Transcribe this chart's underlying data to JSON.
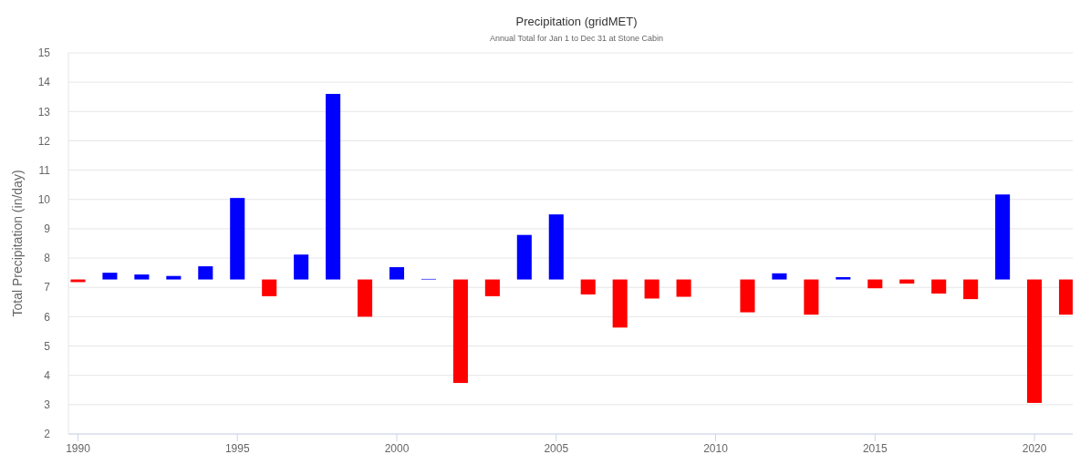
{
  "chart_data": {
    "type": "bar",
    "title": "Precipitation (gridMET)",
    "subtitle": "Annual Total for Jan 1 to Dec 31 at Stone Cabin",
    "ylabel": "Total Precipitation (in/day)",
    "x": [
      1990,
      1991,
      1992,
      1993,
      1994,
      1995,
      1996,
      1997,
      1998,
      1999,
      2000,
      2001,
      2002,
      2003,
      2004,
      2005,
      2006,
      2007,
      2008,
      2009,
      2011,
      2012,
      2013,
      2014,
      2015,
      2016,
      2017,
      2018,
      2019,
      2020,
      2021
    ],
    "base": [
      7.27,
      7.27,
      7.27,
      7.27,
      7.27,
      7.27,
      7.27,
      7.27,
      7.27,
      7.27,
      7.27,
      7.27,
      7.27,
      7.27,
      7.27,
      7.27,
      7.27,
      7.27,
      7.27,
      7.27,
      7.27,
      7.27,
      7.27,
      7.27,
      7.27,
      7.27,
      7.27,
      7.27,
      7.27,
      7.27,
      7.27
    ],
    "values": [
      -0.09,
      0.23,
      0.17,
      0.12,
      0.45,
      2.78,
      -0.57,
      0.85,
      6.33,
      -1.27,
      0.42,
      0.02,
      -3.53,
      -0.57,
      1.52,
      2.22,
      -0.51,
      -1.64,
      -0.65,
      -0.59,
      -1.12,
      0.21,
      -1.2,
      0.08,
      -0.3,
      -0.14,
      -0.48,
      -0.67,
      2.9,
      -4.21,
      -1.2
    ],
    "colors": [
      "#ff0000",
      "#0000ff",
      "#0000ff",
      "#0000ff",
      "#0000ff",
      "#0000ff",
      "#ff0000",
      "#0000ff",
      "#0000ff",
      "#ff0000",
      "#0000ff",
      "#0000ff",
      "#ff0000",
      "#ff0000",
      "#0000ff",
      "#0000ff",
      "#ff0000",
      "#ff0000",
      "#ff0000",
      "#ff0000",
      "#ff0000",
      "#0000ff",
      "#ff0000",
      "#0000ff",
      "#ff0000",
      "#ff0000",
      "#ff0000",
      "#ff0000",
      "#0000ff",
      "#ff0000",
      "#ff0000"
    ],
    "xlim": [
      1989.7,
      2021.2
    ],
    "xticks": [
      1990,
      1995,
      2000,
      2005,
      2010,
      2015,
      2020
    ],
    "ylim": [
      2,
      15
    ],
    "yticks": [
      2,
      3,
      4,
      5,
      6,
      7,
      8,
      9,
      10,
      11,
      12,
      13,
      14,
      15
    ],
    "grid": "y"
  }
}
